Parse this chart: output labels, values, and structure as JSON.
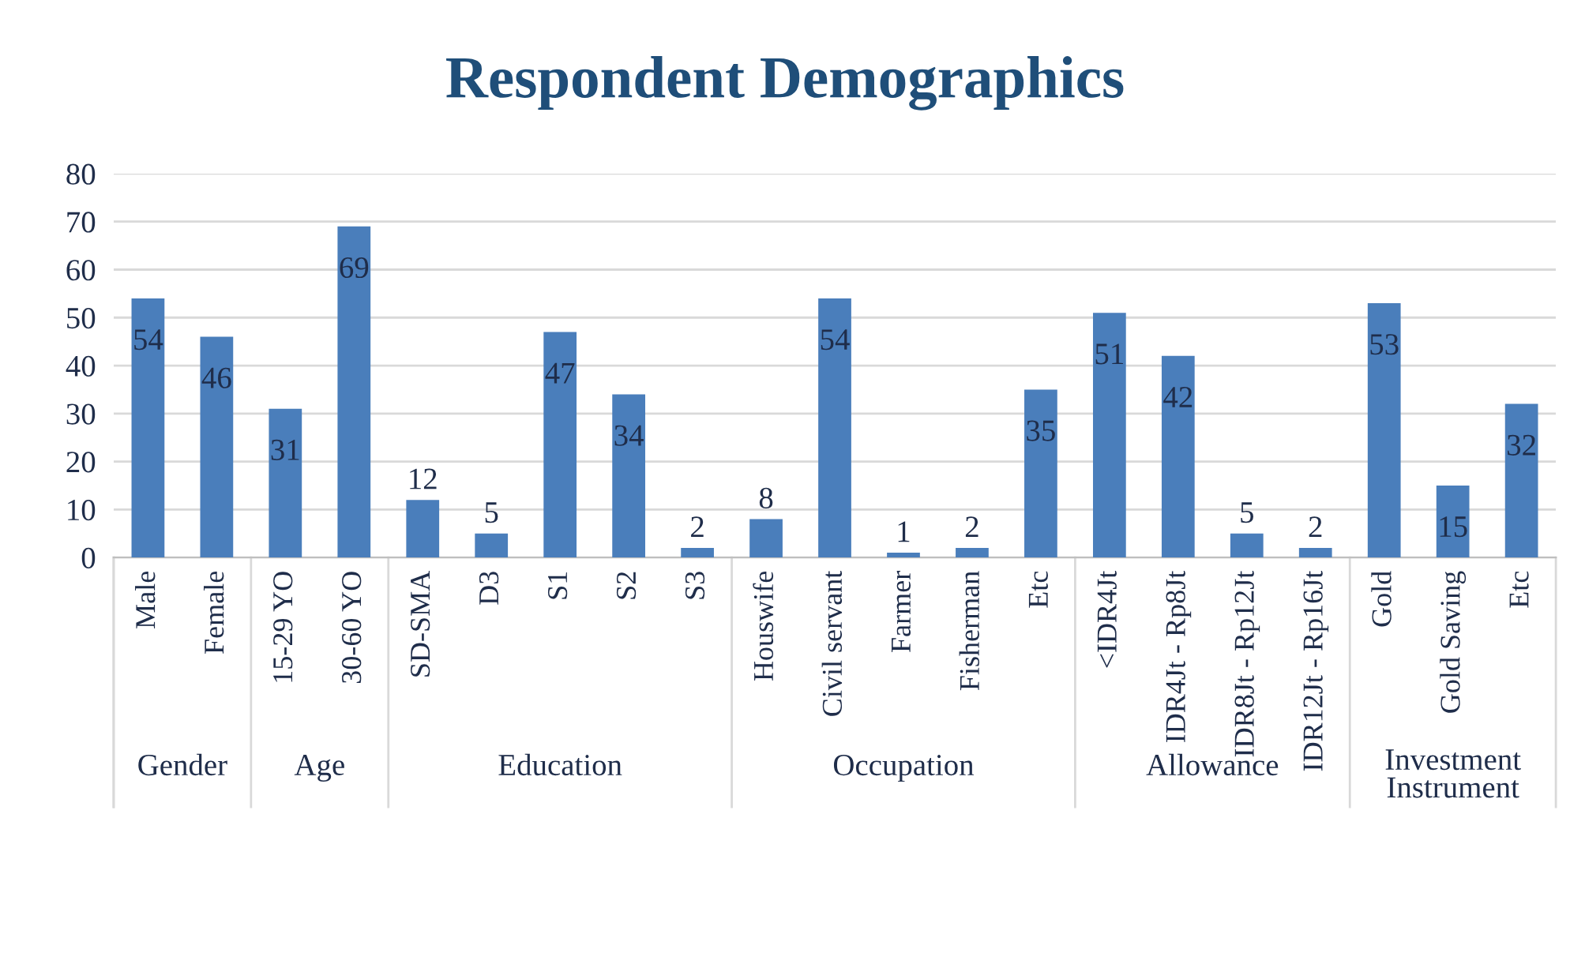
{
  "chart_data": {
    "type": "bar",
    "title": "Respondent Demographics",
    "categories": [
      "Male",
      "Female",
      "15-29 YO",
      "30-60 YO",
      "SD-SMA",
      "D3",
      "S1",
      "S2",
      "S3",
      "Houswife",
      "Civil servant",
      "Farmer",
      "Fisherman",
      "Etc",
      "<IDR4Jt",
      "IDR4Jt - Rp8Jt",
      "IDR8Jt - Rp12Jt",
      "IDR12Jt - Rp16Jt",
      "Gold",
      "Gold Saving",
      "Etc"
    ],
    "values": [
      54,
      46,
      31,
      69,
      12,
      5,
      47,
      34,
      2,
      8,
      54,
      1,
      2,
      35,
      51,
      42,
      5,
      2,
      53,
      15,
      32
    ],
    "color": "#4a7ebb",
    "ylim": [
      0,
      80
    ],
    "yticks": [
      0,
      10,
      20,
      30,
      40,
      50,
      60,
      70,
      80
    ],
    "grid": "y",
    "data_labels": true,
    "annotations": [
      "Gender",
      "Age",
      "Education",
      "Occupation",
      "Allowance",
      "Investment Instrument"
    ]
  }
}
